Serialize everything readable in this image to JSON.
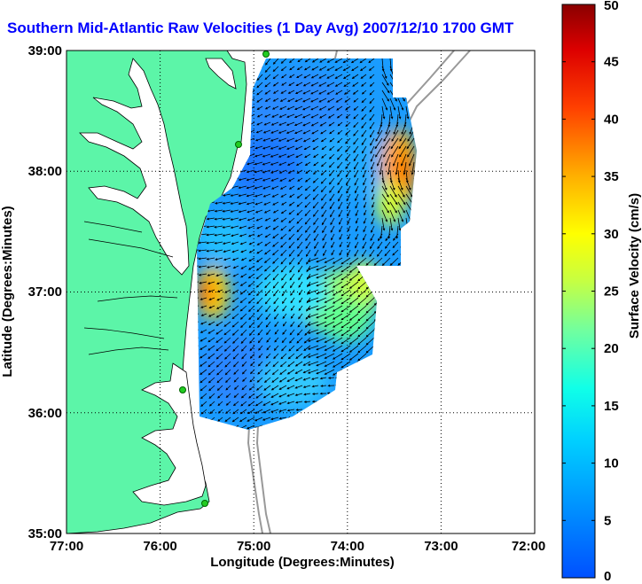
{
  "title": "Southern Mid-Atlantic Raw Velocities (1 Day Avg) 2007/12/10 1700 GMT",
  "chart_data": {
    "type": "heatmap",
    "subtype": "surface current vector map",
    "xlabel": "Longitude (Degrees:Minutes)",
    "ylabel": "Latitude (Degrees:Minutes)",
    "x_ticks": [
      "77:00",
      "76:00",
      "75:00",
      "74:00",
      "73:00",
      "72:00"
    ],
    "y_ticks": [
      "39:00",
      "38:00",
      "37:00",
      "36:00",
      "35:00"
    ],
    "xlim": [
      -77,
      -72
    ],
    "ylim": [
      35,
      39
    ],
    "grid": true,
    "colorbar": {
      "label": "Surface Velocity (cm/s)",
      "range": [
        0,
        50
      ],
      "ticks": [
        "50",
        "45",
        "40",
        "35",
        "30",
        "25",
        "20",
        "15",
        "10",
        "5",
        "0"
      ],
      "colormap": "jet"
    },
    "colors": {
      "land": "#5cf5a8",
      "coastline": "#000000",
      "bathymetry": "#999999",
      "arrows": "#000000",
      "stations": "#22cc22"
    }
  }
}
